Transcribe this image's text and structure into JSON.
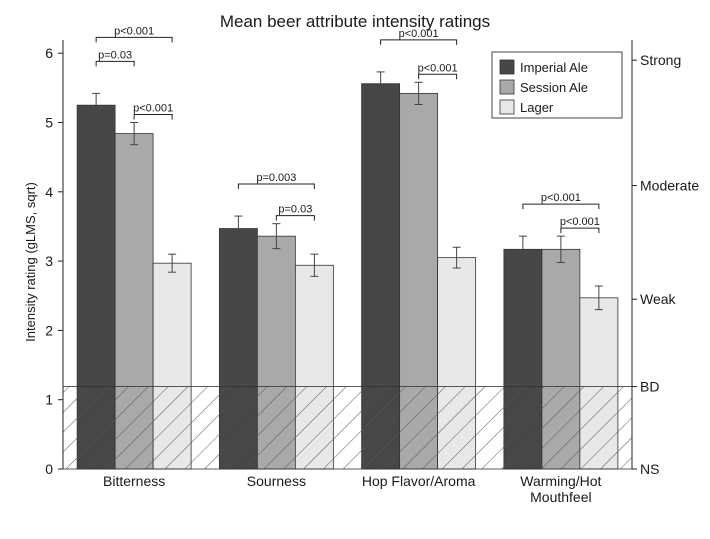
{
  "chart_data": {
    "type": "bar",
    "title": "Mean beer attribute intensity ratings",
    "ylabel": "Intensity rating (gLMS, sqrt)",
    "xlabel": "",
    "ylim": [
      0,
      6
    ],
    "yticks": [
      0,
      1,
      2,
      3,
      4,
      5,
      6
    ],
    "categories": [
      [
        "Bitterness"
      ],
      [
        "Sourness"
      ],
      [
        "Hop Flavor/Aroma"
      ],
      [
        "Warming/Hot",
        "Mouthfeel"
      ]
    ],
    "series": [
      {
        "name": "Imperial Ale",
        "color": "#474747",
        "values": [
          5.25,
          3.47,
          5.56,
          3.17
        ],
        "errors": [
          0.17,
          0.18,
          0.17,
          0.19
        ]
      },
      {
        "name": "Session Ale",
        "color": "#a9a9a9",
        "values": [
          4.84,
          3.36,
          5.42,
          3.17
        ],
        "errors": [
          0.16,
          0.18,
          0.16,
          0.19
        ]
      },
      {
        "name": "Lager",
        "color": "#e8e8e8",
        "values": [
          2.97,
          2.94,
          3.05,
          2.47
        ],
        "errors": [
          0.13,
          0.16,
          0.15,
          0.17
        ]
      }
    ],
    "legend_position": "top-right",
    "secondary_axis": {
      "labels": [
        {
          "label": "Strong",
          "value": 5.9
        },
        {
          "label": "Moderate",
          "value": 4.09
        },
        {
          "label": "Weak",
          "value": 2.45
        },
        {
          "label": "BD",
          "value": 1.19
        },
        {
          "label": "NS",
          "value": 0
        }
      ]
    },
    "below_detection": {
      "threshold": 1.19,
      "pattern": "diagonal hatch"
    },
    "significance": [
      {
        "category": 0,
        "from": 0,
        "to": 2,
        "label": "p<0.001",
        "level": 3
      },
      {
        "category": 0,
        "from": 0,
        "to": 1,
        "label": "p=0.03",
        "level": 2
      },
      {
        "category": 0,
        "from": 1,
        "to": 2,
        "label": "p<0.001",
        "level": 1
      },
      {
        "category": 1,
        "from": 0,
        "to": 2,
        "label": "p=0.003",
        "level": 2
      },
      {
        "category": 1,
        "from": 1,
        "to": 2,
        "label": "p=0.03",
        "level": 1
      },
      {
        "category": 2,
        "from": 0,
        "to": 2,
        "label": "p<0.001",
        "level": 2
      },
      {
        "category": 2,
        "from": 1,
        "to": 2,
        "label": "p<0.001",
        "level": 1
      },
      {
        "category": 3,
        "from": 0,
        "to": 2,
        "label": "p<0.001",
        "level": 2
      },
      {
        "category": 3,
        "from": 1,
        "to": 2,
        "label": "p<0.001",
        "level": 1
      }
    ]
  }
}
